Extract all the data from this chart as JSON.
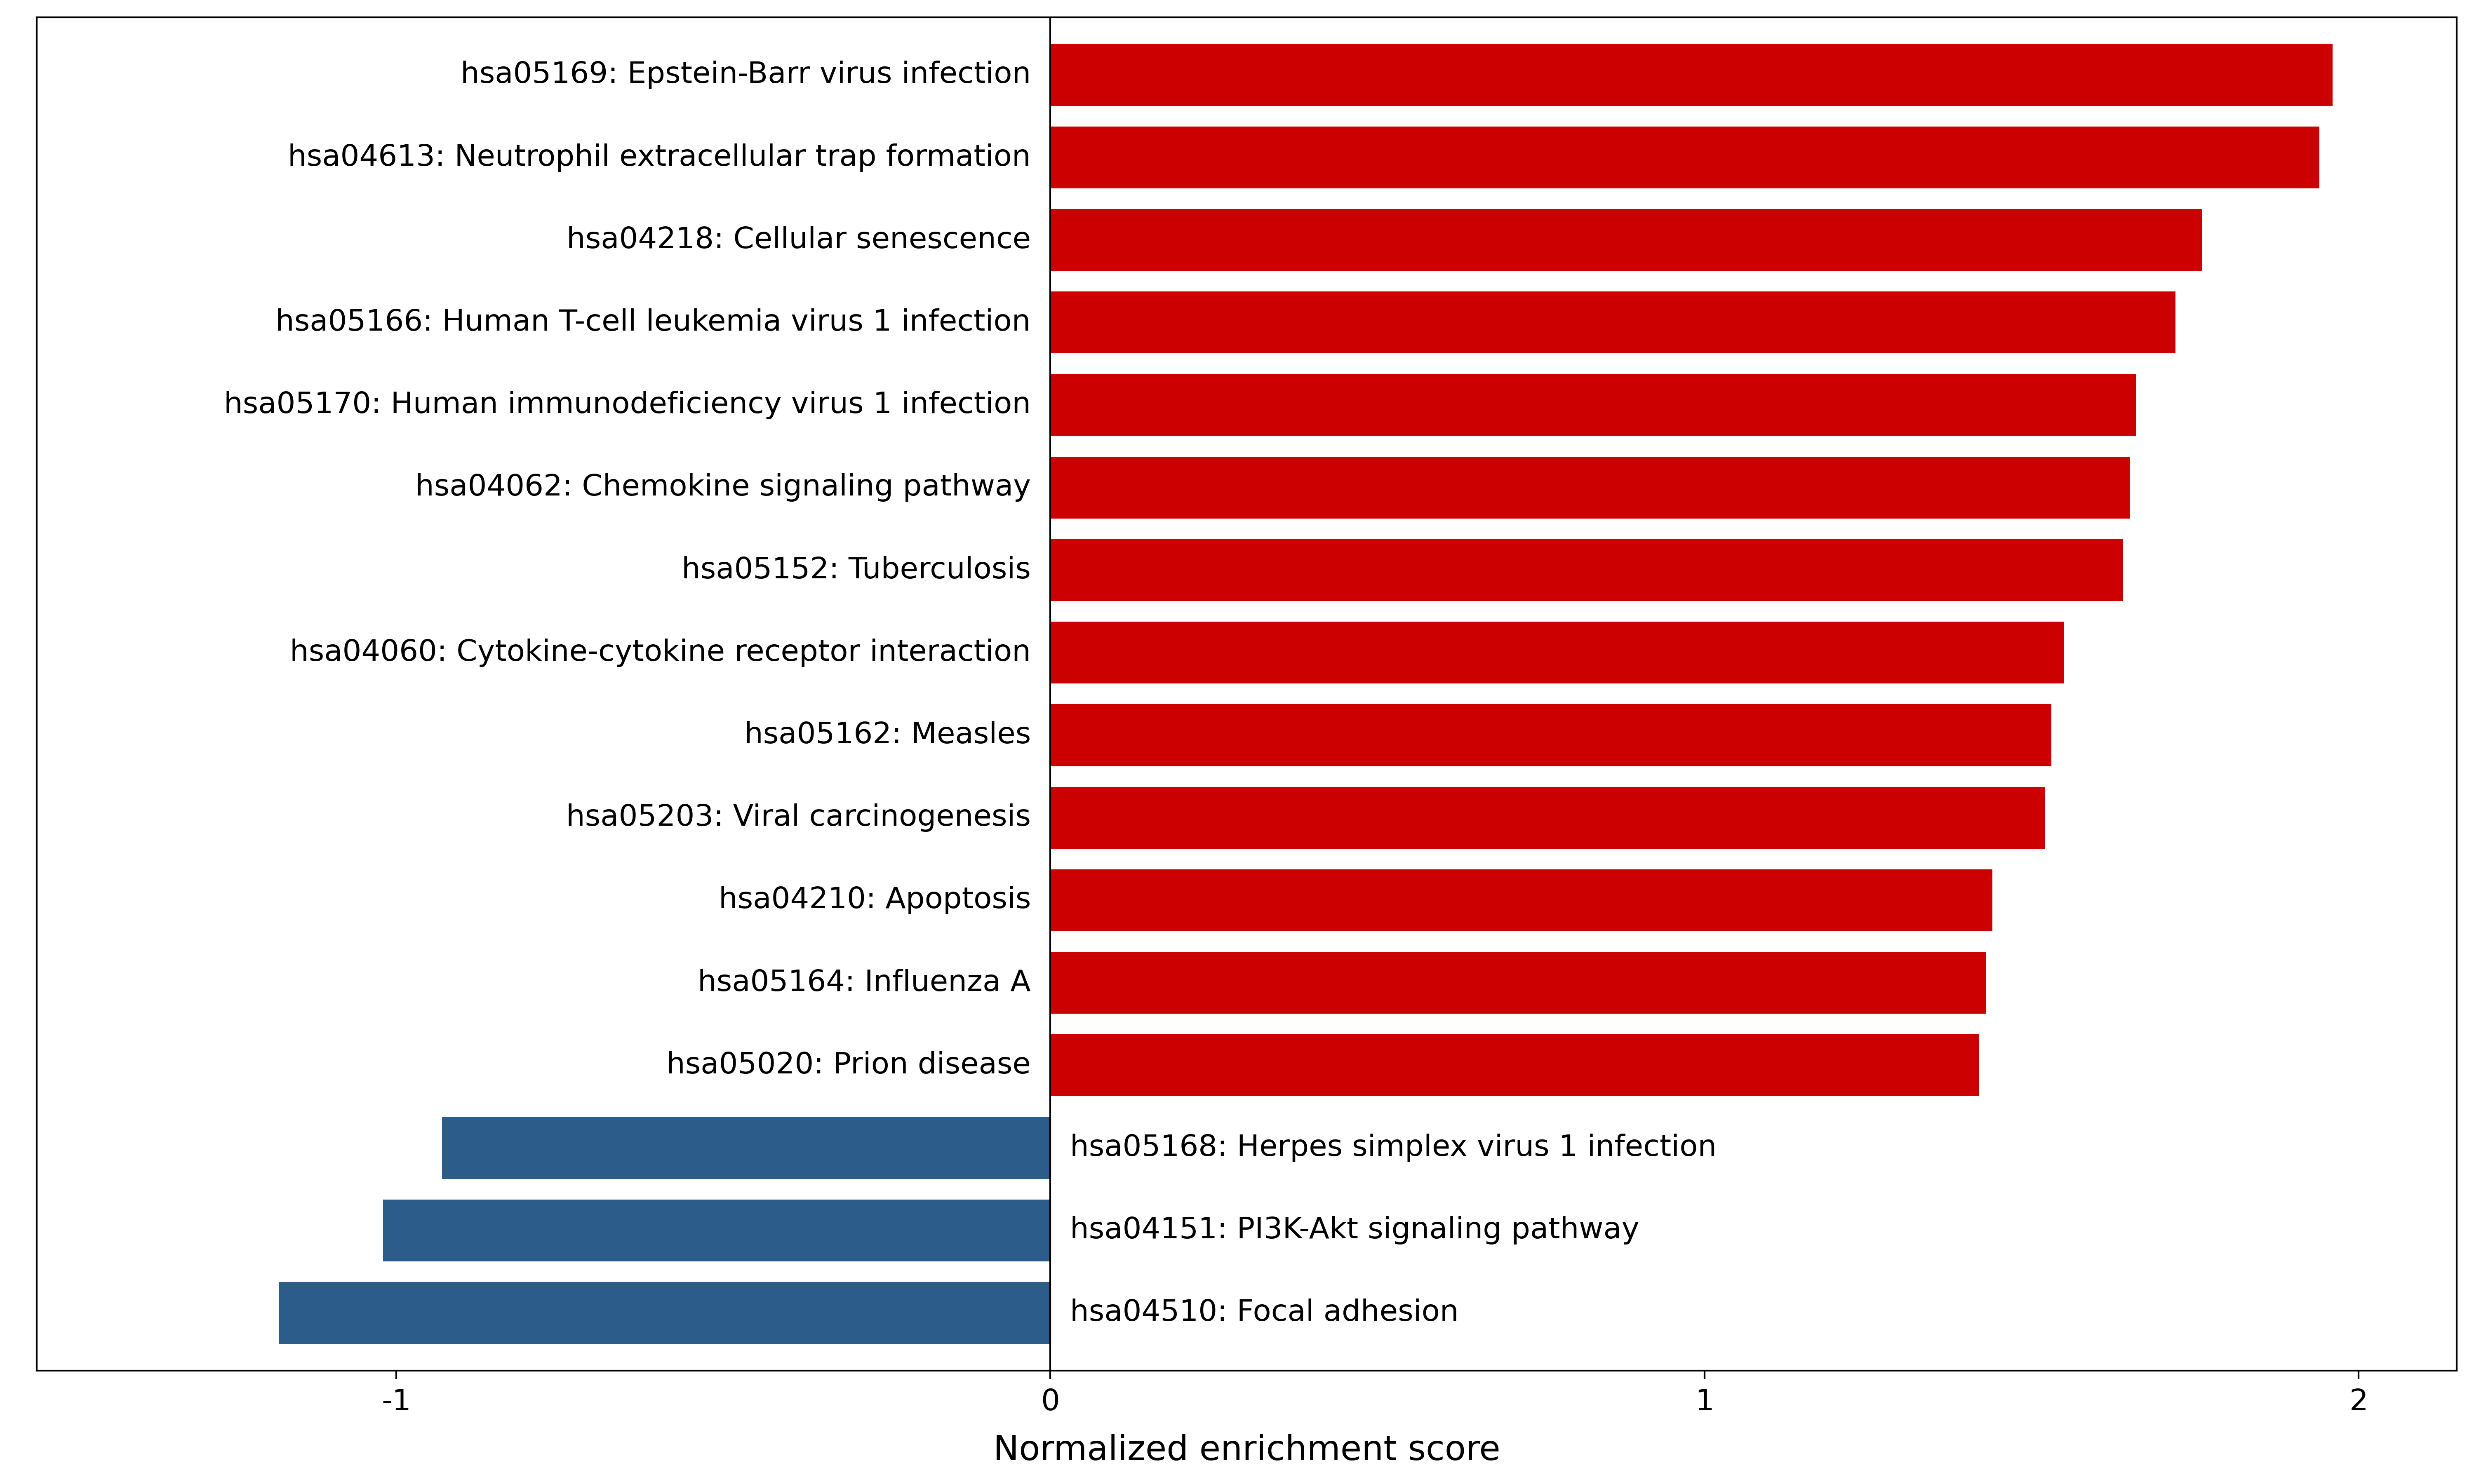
{
  "categories": [
    "hsa05169: Epstein-Barr virus infection",
    "hsa04613: Neutrophil extracellular trap formation",
    "hsa04218: Cellular senescence",
    "hsa05166: Human T-cell leukemia virus 1 infection",
    "hsa05170: Human immunodeficiency virus 1 infection",
    "hsa04062: Chemokine signaling pathway",
    "hsa05152: Tuberculosis",
    "hsa04060: Cytokine-cytokine receptor interaction",
    "hsa05162: Measles",
    "hsa05203: Viral carcinogenesis",
    "hsa04210: Apoptosis",
    "hsa05164: Influenza A",
    "hsa05020: Prion disease",
    "hsa05168: Herpes simplex virus 1 infection",
    "hsa04151: PI3K-Akt signaling pathway",
    "hsa04510: Focal adhesion"
  ],
  "values": [
    1.96,
    1.94,
    1.76,
    1.72,
    1.66,
    1.65,
    1.64,
    1.55,
    1.53,
    1.52,
    1.44,
    1.43,
    1.42,
    -0.93,
    -1.02,
    -1.18
  ],
  "bar_color_positive": "#CC0000",
  "bar_color_negative": "#2B5C8A",
  "xlabel": "Normalized enrichment score",
  "xlim": [
    -1.55,
    2.15
  ],
  "xticks": [
    -1,
    0,
    1,
    2
  ],
  "background_color": "#ffffff",
  "label_fontsize": 52,
  "tick_fontsize": 52,
  "xlabel_fontsize": 60,
  "bar_height": 0.75
}
